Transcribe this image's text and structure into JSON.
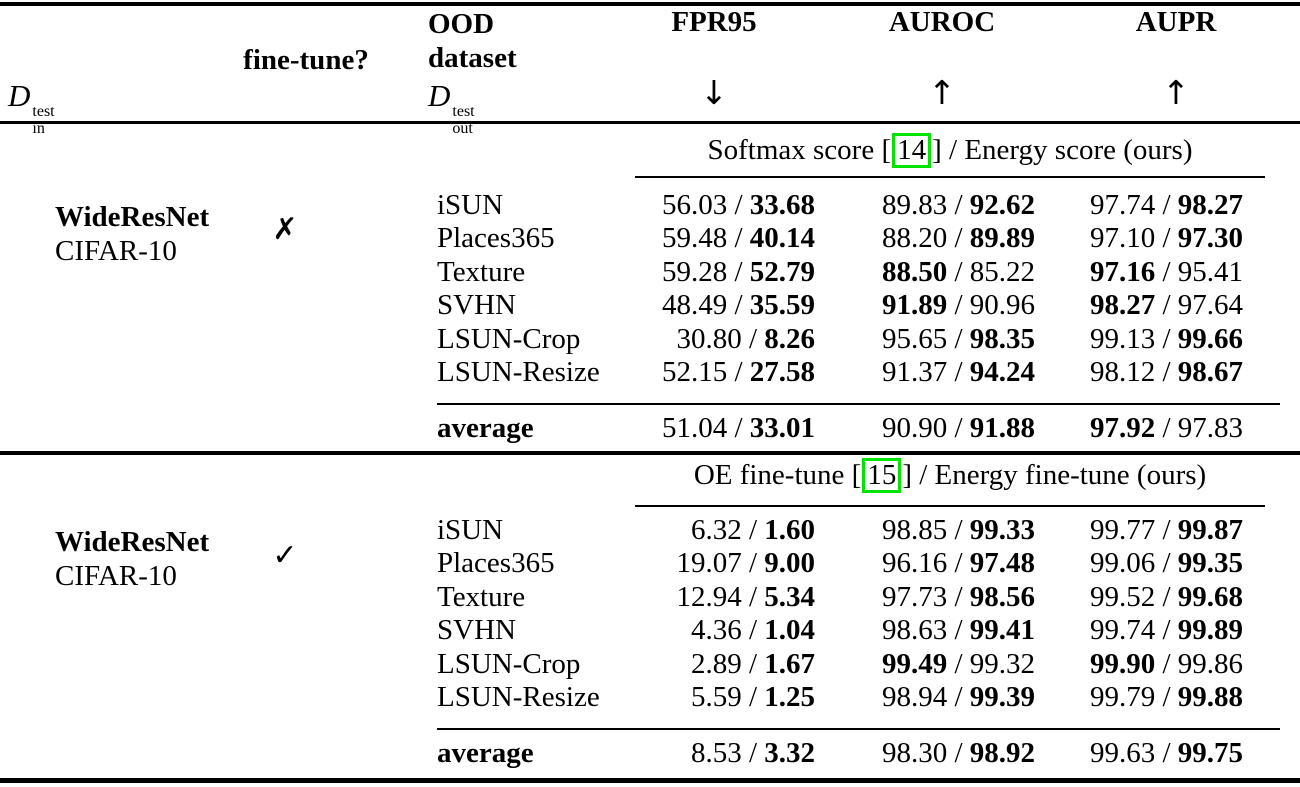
{
  "table": {
    "columns": {
      "model_symbol": {
        "letter": "D",
        "sup": "test",
        "sub": "in"
      },
      "finetune_label": "fine-tune?",
      "ood_line1": "OOD",
      "ood_line2": "dataset",
      "ood_symbol": {
        "letter": "D",
        "sup": "test",
        "sub": "out"
      },
      "metrics": [
        {
          "label": "FPR95",
          "direction": "↓"
        },
        {
          "label": "AUROC",
          "direction": "↑"
        },
        {
          "label": "AUPR",
          "direction": "↑"
        }
      ]
    },
    "sections": [
      {
        "title": {
          "prefix": "Softmax score [",
          "cite": "14",
          "suffix": "] / Energy score (ours)"
        },
        "model_name": "WideResNet",
        "model_dataset": "CIFAR-10",
        "finetune_mark": "✗",
        "rows": [
          {
            "dataset": "iSUN",
            "cells": [
              {
                "l": "56.03",
                "r": "33.68",
                "bold": "r"
              },
              {
                "l": "89.83",
                "r": "92.62",
                "bold": "r"
              },
              {
                "l": "97.74",
                "r": "98.27",
                "bold": "r"
              }
            ]
          },
          {
            "dataset": "Places365",
            "cells": [
              {
                "l": "59.48",
                "r": "40.14",
                "bold": "r"
              },
              {
                "l": "88.20",
                "r": "89.89",
                "bold": "r"
              },
              {
                "l": "97.10",
                "r": "97.30",
                "bold": "r"
              }
            ]
          },
          {
            "dataset": "Texture",
            "cells": [
              {
                "l": "59.28",
                "r": "52.79",
                "bold": "r"
              },
              {
                "l": "88.50",
                "r": "85.22",
                "bold": "l"
              },
              {
                "l": "97.16",
                "r": "95.41",
                "bold": "l"
              }
            ]
          },
          {
            "dataset": "SVHN",
            "cells": [
              {
                "l": "48.49",
                "r": "35.59",
                "bold": "r"
              },
              {
                "l": "91.89",
                "r": "90.96",
                "bold": "l"
              },
              {
                "l": "98.27",
                "r": "97.64",
                "bold": "l"
              }
            ]
          },
          {
            "dataset": "LSUN-Crop",
            "cells": [
              {
                "l": "30.80",
                "r": "8.26",
                "bold": "r"
              },
              {
                "l": "95.65",
                "r": "98.35",
                "bold": "r"
              },
              {
                "l": "99.13",
                "r": "99.66",
                "bold": "r"
              }
            ]
          },
          {
            "dataset": "LSUN-Resize",
            "cells": [
              {
                "l": "52.15",
                "r": "27.58",
                "bold": "r"
              },
              {
                "l": "91.37",
                "r": "94.24",
                "bold": "r"
              },
              {
                "l": "98.12",
                "r": "98.67",
                "bold": "r"
              }
            ]
          }
        ],
        "average": {
          "label": "average",
          "cells": [
            {
              "l": "51.04",
              "r": "33.01",
              "bold": "r"
            },
            {
              "l": "90.90",
              "r": "91.88",
              "bold": "r"
            },
            {
              "l": "97.92",
              "r": "97.83",
              "bold": "l"
            }
          ]
        }
      },
      {
        "title": {
          "prefix": "OE fine-tune [",
          "cite": "15",
          "suffix": "] / Energy fine-tune (ours)"
        },
        "model_name": "WideResNet",
        "model_dataset": "CIFAR-10",
        "finetune_mark": "✓",
        "rows": [
          {
            "dataset": "iSUN",
            "cells": [
              {
                "l": "6.32",
                "r": "1.60",
                "bold": "r"
              },
              {
                "l": "98.85",
                "r": "99.33",
                "bold": "r"
              },
              {
                "l": "99.77",
                "r": "99.87",
                "bold": "r"
              }
            ]
          },
          {
            "dataset": "Places365",
            "cells": [
              {
                "l": "19.07",
                "r": "9.00",
                "bold": "r"
              },
              {
                "l": "96.16",
                "r": "97.48",
                "bold": "r"
              },
              {
                "l": "99.06",
                "r": "99.35",
                "bold": "r"
              }
            ]
          },
          {
            "dataset": "Texture",
            "cells": [
              {
                "l": "12.94",
                "r": "5.34",
                "bold": "r"
              },
              {
                "l": "97.73",
                "r": "98.56",
                "bold": "r"
              },
              {
                "l": "99.52",
                "r": "99.68",
                "bold": "r"
              }
            ]
          },
          {
            "dataset": "SVHN",
            "cells": [
              {
                "l": "4.36",
                "r": "1.04",
                "bold": "r"
              },
              {
                "l": "98.63",
                "r": "99.41",
                "bold": "r"
              },
              {
                "l": "99.74",
                "r": "99.89",
                "bold": "r"
              }
            ]
          },
          {
            "dataset": "LSUN-Crop",
            "cells": [
              {
                "l": "2.89",
                "r": "1.67",
                "bold": "r"
              },
              {
                "l": "99.49",
                "r": "99.32",
                "bold": "l"
              },
              {
                "l": "99.90",
                "r": "99.86",
                "bold": "l"
              }
            ]
          },
          {
            "dataset": "LSUN-Resize",
            "cells": [
              {
                "l": "5.59",
                "r": "1.25",
                "bold": "r"
              },
              {
                "l": "98.94",
                "r": "99.39",
                "bold": "r"
              },
              {
                "l": "99.79",
                "r": "99.88",
                "bold": "r"
              }
            ]
          }
        ],
        "average": {
          "label": "average",
          "cells": [
            {
              "l": "8.53",
              "r": "3.32",
              "bold": "r"
            },
            {
              "l": "98.30",
              "r": "98.92",
              "bold": "r"
            },
            {
              "l": "99.63",
              "r": "99.75",
              "bold": "r"
            }
          ]
        }
      }
    ]
  },
  "colors": {
    "cite_box": "#00e400",
    "text": "#000000",
    "background": "#ffffff"
  }
}
